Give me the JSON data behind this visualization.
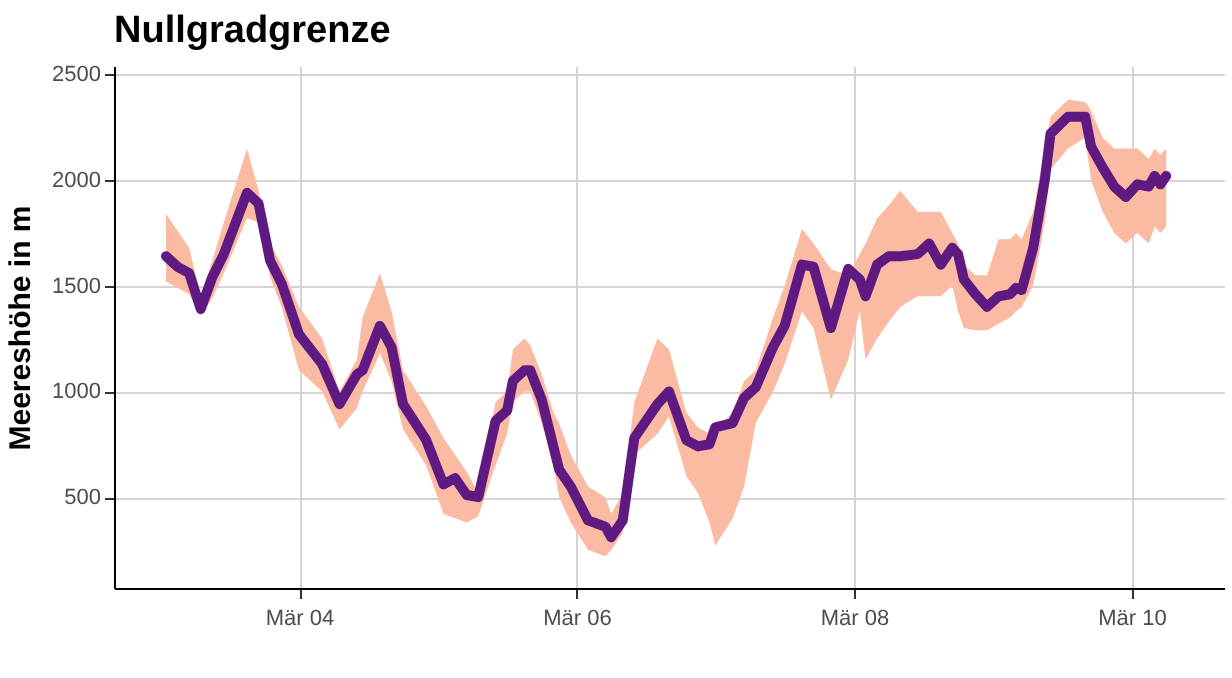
{
  "chart_data": {
    "type": "line",
    "title": "Nullgradgrenze",
    "ylabel": "Meereshöhe in m",
    "x": [
      "--03-03T01:00",
      "--03-03T03:00",
      "--03-03T05:00",
      "--03-03T07:00",
      "--03-03T09:00",
      "--03-03T11:00",
      "--03-03T15:00",
      "--03-03T17:00",
      "--03-03T19:00",
      "--03-03T21:00",
      "--03-04T00:00",
      "--03-04T04:00",
      "--03-04T07:00",
      "--03-04T10:00",
      "--03-04T11:00",
      "--03-04T14:00",
      "--03-04T16:00",
      "--03-04T18:00",
      "--03-04T22:00",
      "--03-05T01:00",
      "--03-05T03:00",
      "--03-05T05:00",
      "--03-05T07:00",
      "--03-05T10:00",
      "--03-05T12:00",
      "--03-05T13:00",
      "--03-05T15:00",
      "--03-05T16:00",
      "--03-05T18:00",
      "--03-05T20:00",
      "--03-05T21:00",
      "--03-05T23:00",
      "--03-06T02:00",
      "--03-06T05:00",
      "--03-06T06:00",
      "--03-06T08:00",
      "--03-06T10:00",
      "--03-06T14:00",
      "--03-06T16:00",
      "--03-06T19:00",
      "--03-06T21:00",
      "--03-06T23:00",
      "--03-07T00:00",
      "--03-07T03:00",
      "--03-07T05:00",
      "--03-07T07:00",
      "--03-07T10:00",
      "--03-07T12:00",
      "--03-07T15:00",
      "--03-07T17:00",
      "--03-07T20:00",
      "--03-07T23:00",
      "--03-08T01:00",
      "--03-08T02:00",
      "--03-08T04:00",
      "--03-08T06:00",
      "--03-08T08:00",
      "--03-08T11:00",
      "--03-08T13:00",
      "--03-08T15:00",
      "--03-08T17:00",
      "--03-08T18:00",
      "--03-08T19:00",
      "--03-08T21:00",
      "--03-08T23:00",
      "--03-09T01:00",
      "--03-09T03:00",
      "--03-09T04:00",
      "--03-09T05:00",
      "--03-09T07:00",
      "--03-09T09:00",
      "--03-09T10:00",
      "--03-09T13:00",
      "--03-09T16:00",
      "--03-09T17:00",
      "--03-09T19:00",
      "--03-09T21:00",
      "--03-09T23:00",
      "--03-10T01:00",
      "--03-10T03:00",
      "--03-10T04:00",
      "--03-10T05:00",
      "--03-10T06:00"
    ],
    "series": [
      {
        "color": "#5e1a80",
        "values": [
          1640,
          1590,
          1560,
          1390,
          1540,
          1650,
          1940,
          1890,
          1620,
          1510,
          1270,
          1130,
          940,
          1080,
          1100,
          1310,
          1210,
          940,
          770,
          560,
          590,
          510,
          500,
          860,
          910,
          1050,
          1100,
          1100,
          960,
          740,
          630,
          550,
          390,
          360,
          310,
          390,
          780,
          940,
          1000,
          770,
          740,
          750,
          830,
          850,
          970,
          1020,
          1210,
          1310,
          1600,
          1590,
          1300,
          1580,
          1530,
          1450,
          1600,
          1640,
          1640,
          1650,
          1700,
          1600,
          1680,
          1650,
          1530,
          1460,
          1400,
          1450,
          1460,
          1490,
          1480,
          1680,
          2000,
          2220,
          2300,
          2300,
          2160,
          2060,
          1970,
          1920,
          1980,
          1970,
          2020,
          1980,
          2020
        ],
        "lower": [
          1520,
          1490,
          1460,
          1360,
          1440,
          1560,
          1820,
          1800,
          1540,
          1400,
          1100,
          1000,
          820,
          920,
          1000,
          1180,
          1050,
          820,
          650,
          420,
          400,
          380,
          410,
          650,
          800,
          950,
          1000,
          1000,
          850,
          650,
          500,
          380,
          250,
          220,
          250,
          330,
          700,
          800,
          880,
          600,
          520,
          380,
          270,
          400,
          550,
          850,
          1000,
          1130,
          1380,
          1300,
          960,
          1150,
          1380,
          1150,
          1250,
          1330,
          1400,
          1450,
          1450,
          1450,
          1500,
          1380,
          1300,
          1290,
          1290,
          1320,
          1350,
          1380,
          1400,
          1500,
          1800,
          2050,
          2150,
          2200,
          2000,
          1850,
          1750,
          1700,
          1750,
          1700,
          1780,
          1750,
          1780
        ],
        "upper": [
          1840,
          1760,
          1680,
          1450,
          1620,
          1800,
          2150,
          1950,
          1700,
          1600,
          1400,
          1250,
          1000,
          1150,
          1350,
          1560,
          1380,
          1100,
          930,
          780,
          700,
          620,
          520,
          950,
          1000,
          1200,
          1250,
          1220,
          1080,
          900,
          850,
          700,
          550,
          500,
          420,
          520,
          950,
          1250,
          1200,
          900,
          830,
          800,
          820,
          900,
          1050,
          1100,
          1350,
          1500,
          1770,
          1700,
          1580,
          1550,
          1650,
          1700,
          1820,
          1880,
          1950,
          1850,
          1850,
          1850,
          1750,
          1700,
          1600,
          1550,
          1550,
          1720,
          1720,
          1750,
          1720,
          1850,
          2150,
          2300,
          2380,
          2370,
          2330,
          2200,
          2150,
          2150,
          2150,
          2100,
          2150,
          2120,
          2150
        ]
      }
    ],
    "xlim": [
      "--03-02T16:00",
      "--03-10T16:00"
    ],
    "xticks": [
      {
        "value": "--03-04",
        "label": "Mär 04"
      },
      {
        "value": "--03-06",
        "label": "Mär 06"
      },
      {
        "value": "--03-08",
        "label": "Mär 08"
      },
      {
        "value": "--03-10",
        "label": "Mär 10"
      }
    ],
    "ylim": [
      70,
      2540
    ],
    "yticks": [
      500,
      1000,
      1500,
      2000,
      2500
    ],
    "grid": true
  }
}
